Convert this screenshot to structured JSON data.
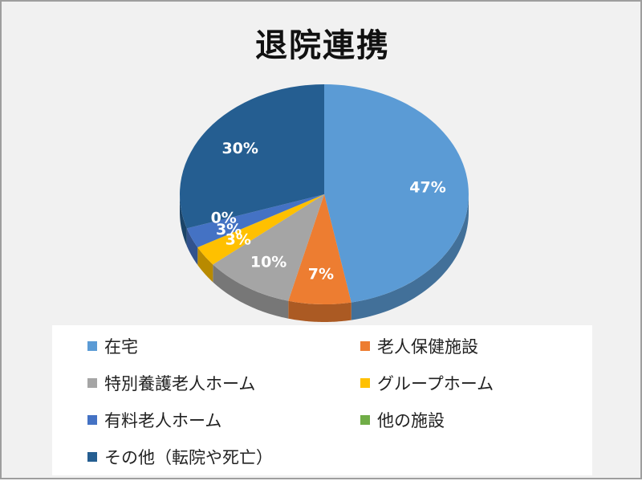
{
  "chart_data": {
    "type": "pie",
    "title": "退院連携",
    "categories": [
      "在宅",
      "老人保健施設",
      "特別養護老人ホーム",
      "グループホーム",
      "有料老人ホーム",
      "他の施設",
      "その他（転院や死亡）"
    ],
    "values": [
      47,
      7,
      10,
      3,
      3,
      0,
      30
    ],
    "data_labels": [
      "47%",
      "7%",
      "10%",
      "3%",
      "3%",
      "0%",
      "30%"
    ],
    "colors": [
      "#5b9bd5",
      "#ed7d31",
      "#a5a5a5",
      "#ffc000",
      "#4472c4",
      "#70ad47",
      "#255e91"
    ],
    "style": "3d",
    "legend_position": "bottom",
    "legend_columns": 2
  }
}
